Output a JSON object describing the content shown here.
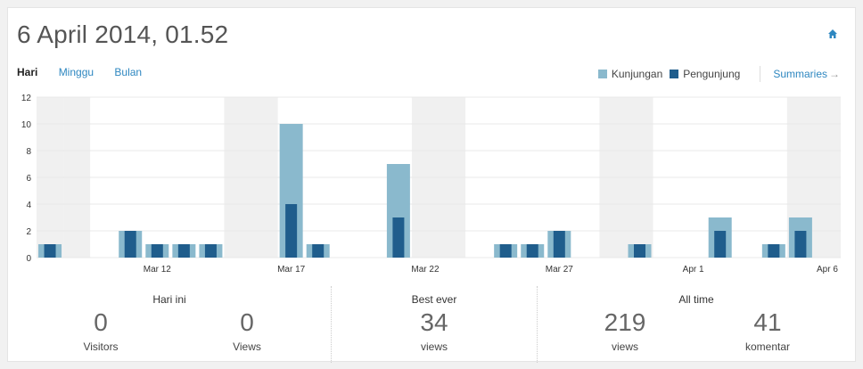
{
  "header": {
    "title": "6 April 2014, 01.52",
    "home_icon": "home-icon"
  },
  "tabs": [
    {
      "label": "Hari",
      "active": true
    },
    {
      "label": "Minggu",
      "active": false
    },
    {
      "label": "Bulan",
      "active": false
    }
  ],
  "legend": {
    "items": [
      {
        "label": "Kunjungan",
        "color": "#8ab9cd"
      },
      {
        "label": "Pengunjung",
        "color": "#1f5d8c"
      }
    ],
    "summaries_label": "Summaries",
    "summaries_arrow": "→"
  },
  "chart_data": {
    "type": "bar",
    "y_ticks": [
      "0",
      "2",
      "4",
      "6",
      "8",
      "10",
      "12"
    ],
    "ylim": [
      0,
      12
    ],
    "x_tick_labels": [
      "Mar 12",
      "Mar 17",
      "Mar 22",
      "Mar 27",
      "Apr 1",
      "Apr 6"
    ],
    "categories": [
      "Mar 8",
      "Mar 9",
      "Mar 10",
      "Mar 11",
      "Mar 12",
      "Mar 13",
      "Mar 14",
      "Mar 15",
      "Mar 16",
      "Mar 17",
      "Mar 18",
      "Mar 19",
      "Mar 20",
      "Mar 21",
      "Mar 22",
      "Mar 23",
      "Mar 24",
      "Mar 25",
      "Mar 26",
      "Mar 27",
      "Mar 28",
      "Mar 29",
      "Mar 30",
      "Mar 31",
      "Apr 1",
      "Apr 2",
      "Apr 3",
      "Apr 4",
      "Apr 5",
      "Apr 6"
    ],
    "weekend_categories": [
      "Mar 8",
      "Mar 9",
      "Mar 15",
      "Mar 16",
      "Mar 22",
      "Mar 23",
      "Mar 29",
      "Mar 30",
      "Apr 5",
      "Apr 6"
    ],
    "series": [
      {
        "name": "Kunjungan",
        "color": "#8ab9cd",
        "values": [
          1,
          0,
          0,
          2,
          1,
          1,
          1,
          0,
          0,
          10,
          1,
          0,
          0,
          7,
          0,
          0,
          0,
          1,
          1,
          2,
          0,
          0,
          1,
          0,
          0,
          3,
          0,
          1,
          3,
          0
        ]
      },
      {
        "name": "Pengunjung",
        "color": "#1f5d8c",
        "values": [
          1,
          0,
          0,
          2,
          1,
          1,
          1,
          0,
          0,
          4,
          1,
          0,
          0,
          3,
          0,
          0,
          0,
          1,
          1,
          2,
          0,
          0,
          1,
          0,
          0,
          2,
          0,
          1,
          2,
          0
        ]
      }
    ],
    "grid": true
  },
  "stats": {
    "today": {
      "heading": "Hari ini",
      "visitors_value": "0",
      "visitors_label": "Visitors",
      "views_value": "0",
      "views_label": "Views"
    },
    "best": {
      "heading": "Best ever",
      "value": "34",
      "label": "views"
    },
    "alltime": {
      "heading": "All time",
      "views_value": "219",
      "views_label": "views",
      "comments_value": "41",
      "comments_label": "komentar"
    }
  }
}
